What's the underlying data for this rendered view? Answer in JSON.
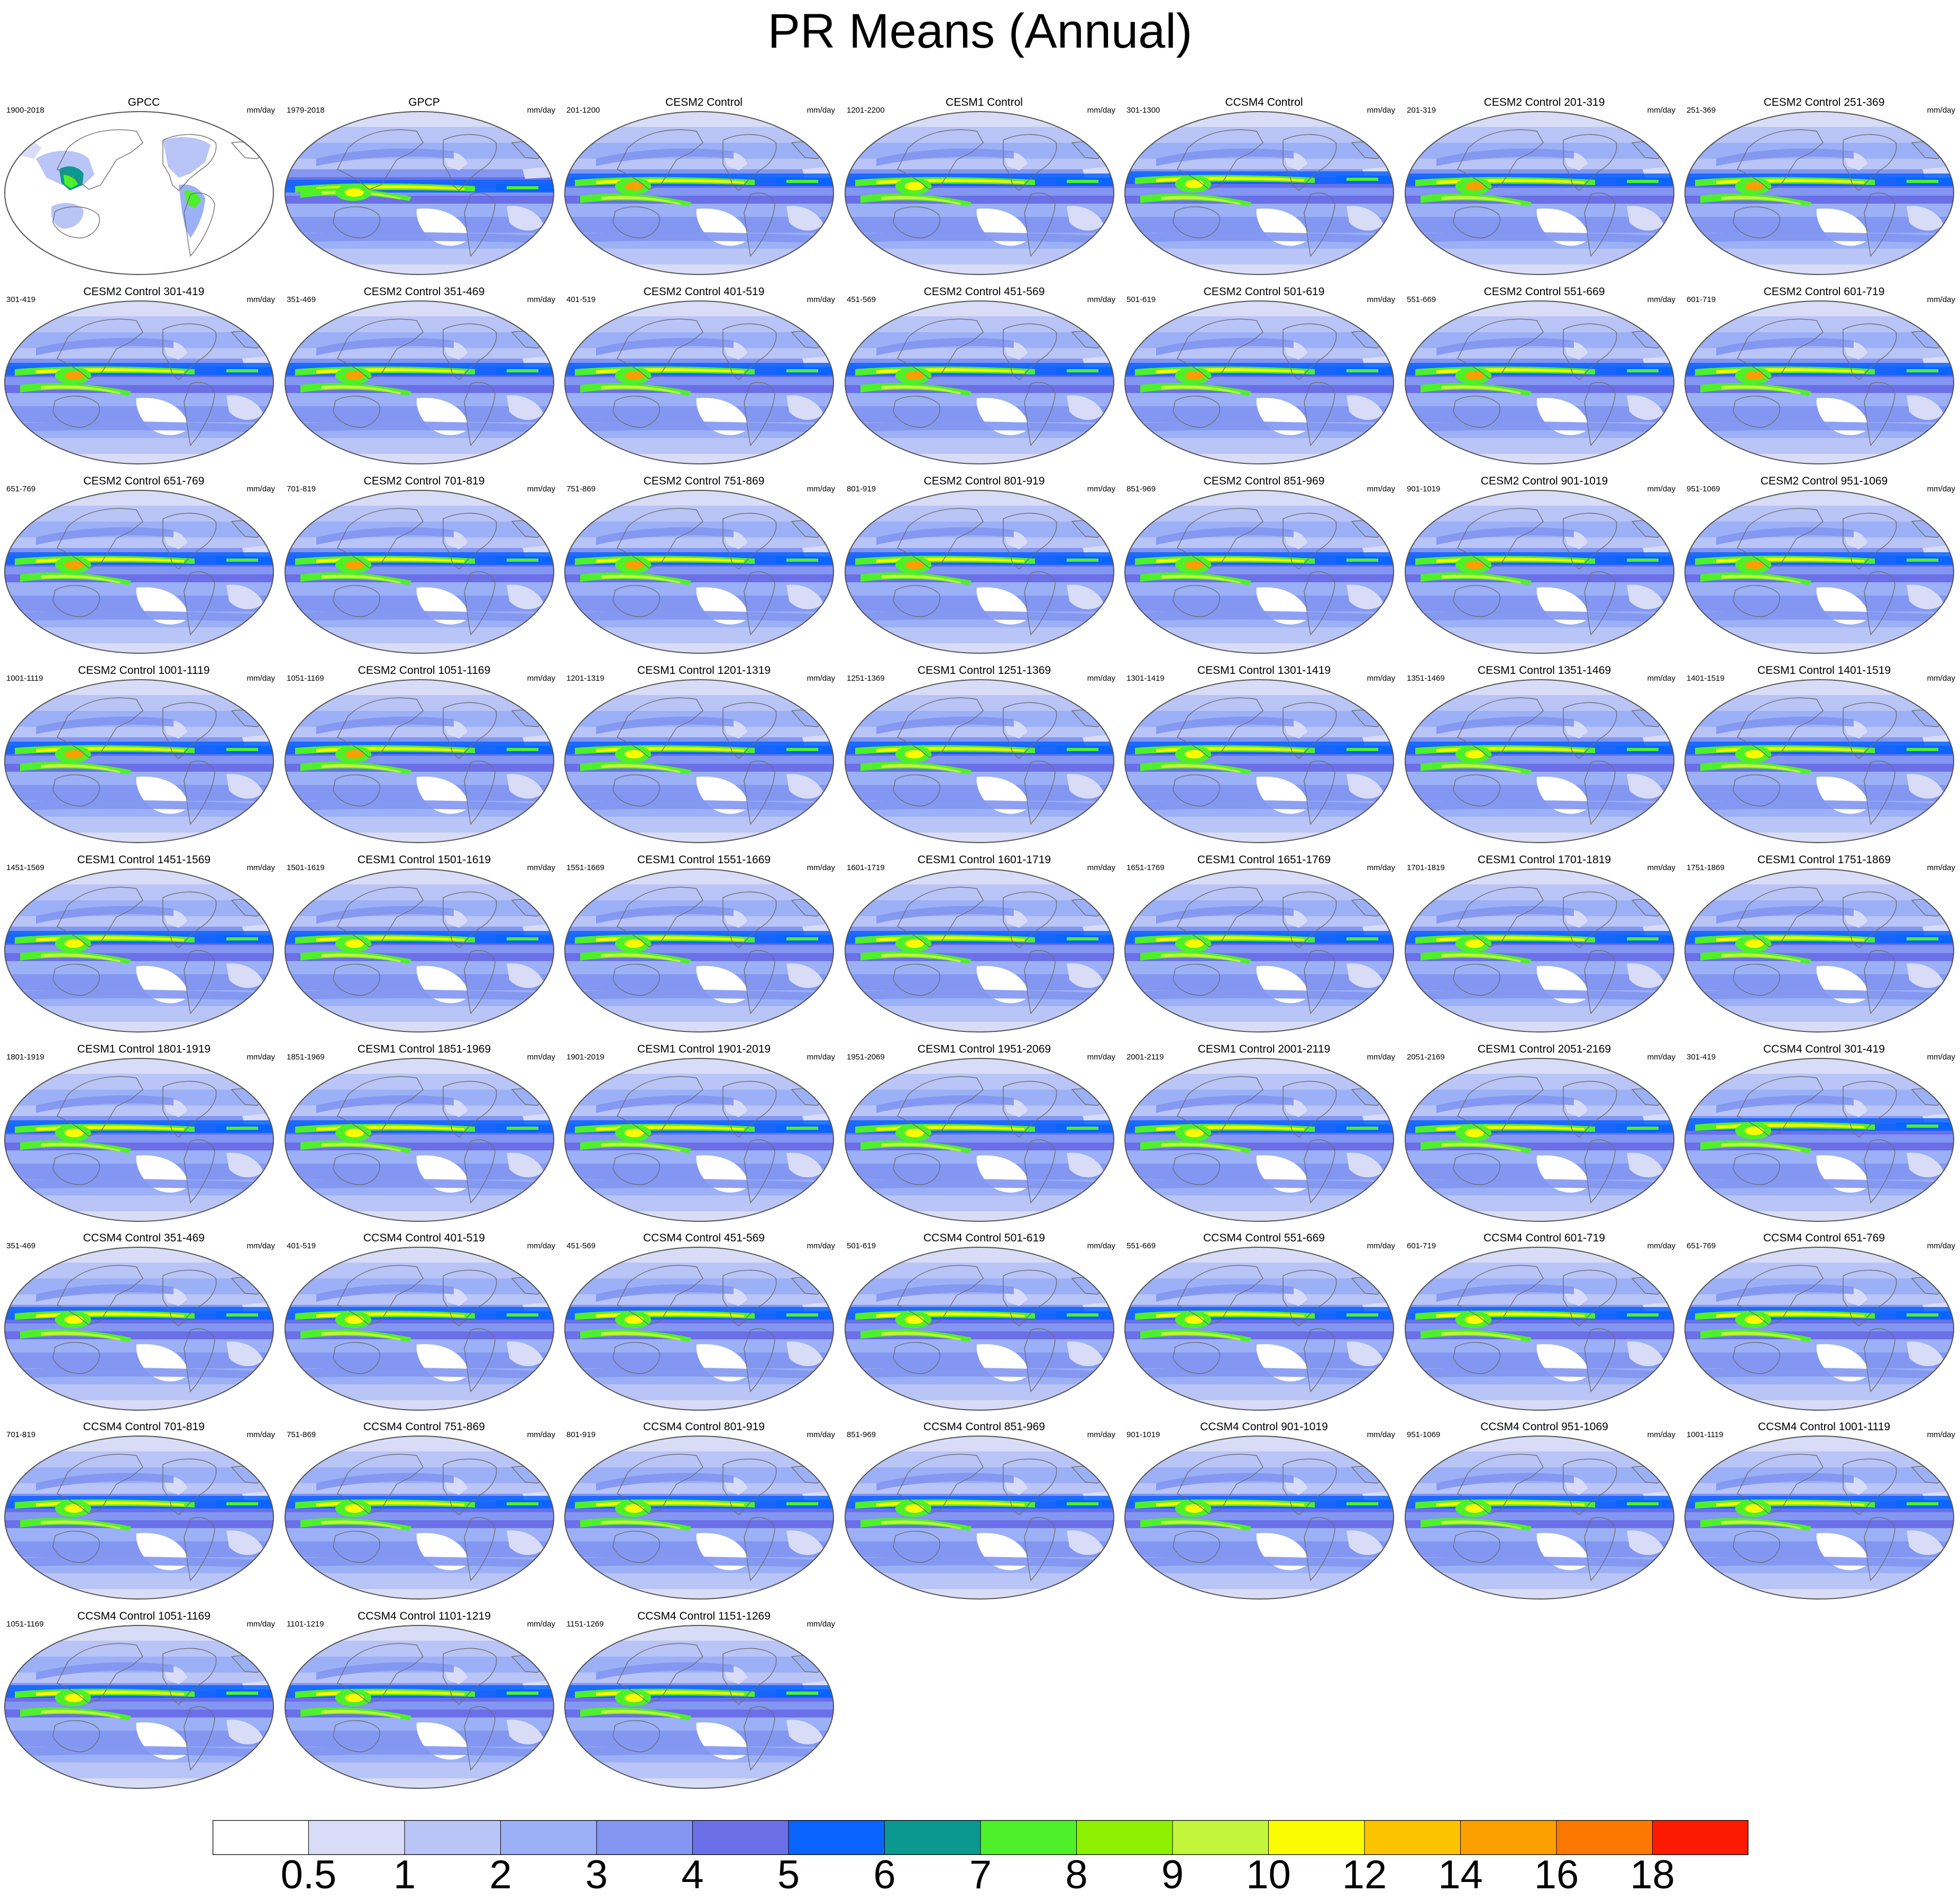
{
  "chart_data": {
    "type": "heatmap",
    "title": "PR Means (Annual)",
    "units": "mm/day",
    "panels": [
      {
        "title": "GPCC",
        "period": "1900-2018",
        "kind": "obs_land"
      },
      {
        "title": "GPCP",
        "period": "1979-2018",
        "kind": "obs"
      },
      {
        "title": "CESM2 Control",
        "period": "201-1200",
        "kind": "cesm2"
      },
      {
        "title": "CESM1 Control",
        "period": "1201-2200",
        "kind": "cesm1"
      },
      {
        "title": "CCSM4 Control",
        "period": "301-1300",
        "kind": "ccsm4"
      },
      {
        "title": "CESM2 Control 201-319",
        "period": "201-319",
        "kind": "cesm2"
      },
      {
        "title": "CESM2 Control 251-369",
        "period": "251-369",
        "kind": "cesm2"
      },
      {
        "title": "CESM2 Control 301-419",
        "period": "301-419",
        "kind": "cesm2"
      },
      {
        "title": "CESM2 Control 351-469",
        "period": "351-469",
        "kind": "cesm2"
      },
      {
        "title": "CESM2 Control 401-519",
        "period": "401-519",
        "kind": "cesm2"
      },
      {
        "title": "CESM2 Control 451-569",
        "period": "451-569",
        "kind": "cesm2"
      },
      {
        "title": "CESM2 Control 501-619",
        "period": "501-619",
        "kind": "cesm2"
      },
      {
        "title": "CESM2 Control 551-669",
        "period": "551-669",
        "kind": "cesm2"
      },
      {
        "title": "CESM2 Control 601-719",
        "period": "601-719",
        "kind": "cesm2"
      },
      {
        "title": "CESM2 Control 651-769",
        "period": "651-769",
        "kind": "cesm2"
      },
      {
        "title": "CESM2 Control 701-819",
        "period": "701-819",
        "kind": "cesm2"
      },
      {
        "title": "CESM2 Control 751-869",
        "period": "751-869",
        "kind": "cesm2"
      },
      {
        "title": "CESM2 Control 801-919",
        "period": "801-919",
        "kind": "cesm2"
      },
      {
        "title": "CESM2 Control 851-969",
        "period": "851-969",
        "kind": "cesm2"
      },
      {
        "title": "CESM2 Control 901-1019",
        "period": "901-1019",
        "kind": "cesm2"
      },
      {
        "title": "CESM2 Control 951-1069",
        "period": "951-1069",
        "kind": "cesm2"
      },
      {
        "title": "CESM2 Control 1001-1119",
        "period": "1001-1119",
        "kind": "cesm2"
      },
      {
        "title": "CESM2 Control 1051-1169",
        "period": "1051-1169",
        "kind": "cesm2"
      },
      {
        "title": "CESM1 Control 1201-1319",
        "period": "1201-1319",
        "kind": "cesm1"
      },
      {
        "title": "CESM1 Control 1251-1369",
        "period": "1251-1369",
        "kind": "cesm1"
      },
      {
        "title": "CESM1 Control 1301-1419",
        "period": "1301-1419",
        "kind": "cesm1"
      },
      {
        "title": "CESM1 Control 1351-1469",
        "period": "1351-1469",
        "kind": "cesm1"
      },
      {
        "title": "CESM1 Control 1401-1519",
        "period": "1401-1519",
        "kind": "cesm1"
      },
      {
        "title": "CESM1 Control 1451-1569",
        "period": "1451-1569",
        "kind": "cesm1"
      },
      {
        "title": "CESM1 Control 1501-1619",
        "period": "1501-1619",
        "kind": "cesm1"
      },
      {
        "title": "CESM1 Control 1551-1669",
        "period": "1551-1669",
        "kind": "cesm1"
      },
      {
        "title": "CESM1 Control 1601-1719",
        "period": "1601-1719",
        "kind": "cesm1"
      },
      {
        "title": "CESM1 Control 1651-1769",
        "period": "1651-1769",
        "kind": "cesm1"
      },
      {
        "title": "CESM1 Control 1701-1819",
        "period": "1701-1819",
        "kind": "cesm1"
      },
      {
        "title": "CESM1 Control 1751-1869",
        "period": "1751-1869",
        "kind": "cesm1"
      },
      {
        "title": "CESM1 Control 1801-1919",
        "period": "1801-1919",
        "kind": "cesm1"
      },
      {
        "title": "CESM1 Control 1851-1969",
        "period": "1851-1969",
        "kind": "cesm1"
      },
      {
        "title": "CESM1 Control 1901-2019",
        "period": "1901-2019",
        "kind": "cesm1"
      },
      {
        "title": "CESM1 Control 1951-2069",
        "period": "1951-2069",
        "kind": "cesm1"
      },
      {
        "title": "CESM1 Control 2001-2119",
        "period": "2001-2119",
        "kind": "cesm1"
      },
      {
        "title": "CESM1 Control 2051-2169",
        "period": "2051-2169",
        "kind": "cesm1"
      },
      {
        "title": "CCSM4 Control 301-419",
        "period": "301-419",
        "kind": "ccsm4"
      },
      {
        "title": "CCSM4 Control 351-469",
        "period": "351-469",
        "kind": "ccsm4"
      },
      {
        "title": "CCSM4 Control 401-519",
        "period": "401-519",
        "kind": "ccsm4"
      },
      {
        "title": "CCSM4 Control 451-569",
        "period": "451-569",
        "kind": "ccsm4"
      },
      {
        "title": "CCSM4 Control 501-619",
        "period": "501-619",
        "kind": "ccsm4"
      },
      {
        "title": "CCSM4 Control 551-669",
        "period": "551-669",
        "kind": "ccsm4"
      },
      {
        "title": "CCSM4 Control 601-719",
        "period": "601-719",
        "kind": "ccsm4"
      },
      {
        "title": "CCSM4 Control 651-769",
        "period": "651-769",
        "kind": "ccsm4"
      },
      {
        "title": "CCSM4 Control 701-819",
        "period": "701-819",
        "kind": "ccsm4"
      },
      {
        "title": "CCSM4 Control 751-869",
        "period": "751-869",
        "kind": "ccsm4"
      },
      {
        "title": "CCSM4 Control 801-919",
        "period": "801-919",
        "kind": "ccsm4"
      },
      {
        "title": "CCSM4 Control 851-969",
        "period": "851-969",
        "kind": "ccsm4"
      },
      {
        "title": "CCSM4 Control 901-1019",
        "period": "901-1019",
        "kind": "ccsm4"
      },
      {
        "title": "CCSM4 Control 951-1069",
        "period": "951-1069",
        "kind": "ccsm4"
      },
      {
        "title": "CCSM4 Control 1001-1119",
        "period": "1001-1119",
        "kind": "ccsm4"
      },
      {
        "title": "CCSM4 Control 1051-1169",
        "period": "1051-1169",
        "kind": "ccsm4"
      },
      {
        "title": "CCSM4 Control 1101-1219",
        "period": "1101-1219",
        "kind": "ccsm4"
      },
      {
        "title": "CCSM4 Control 1151-1269",
        "period": "1151-1269",
        "kind": "ccsm4"
      }
    ],
    "colorbar": {
      "levels": [
        "0.5",
        "1",
        "2",
        "3",
        "4",
        "5",
        "6",
        "7",
        "8",
        "9",
        "10",
        "12",
        "14",
        "16",
        "18"
      ],
      "colors": [
        "#ffffff",
        "#d8dcf7",
        "#b9c4f7",
        "#9bb0f6",
        "#8296f2",
        "#6b6fe8",
        "#0a64ff",
        "#0a9890",
        "#4ef02a",
        "#8cf000",
        "#c3f53b",
        "#fcfc00",
        "#fcc400",
        "#fca000",
        "#fc7800",
        "#fc1a00"
      ]
    }
  }
}
